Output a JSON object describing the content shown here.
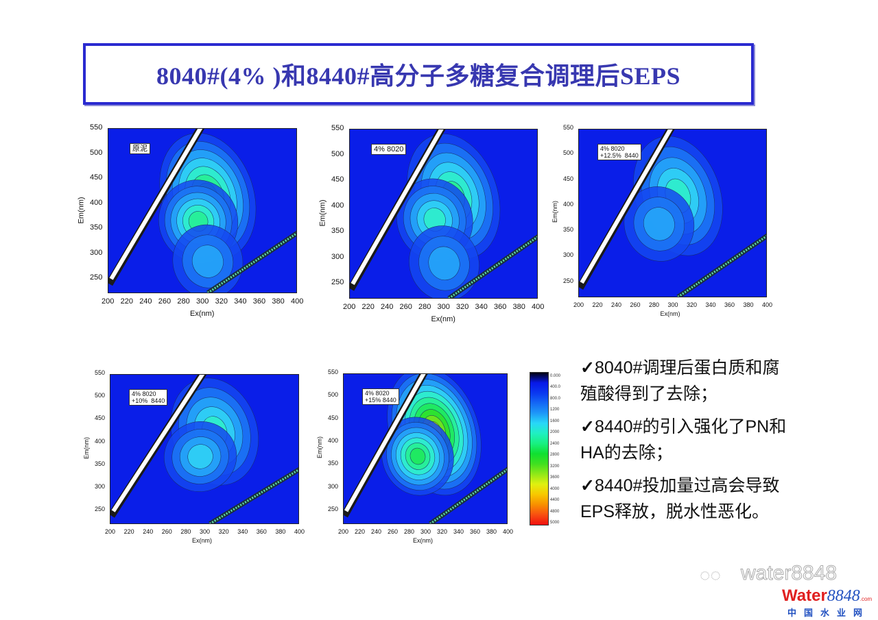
{
  "slide": {
    "title": "8040#(4% )和8440#高分子多糖复合调理后SEPS",
    "bullets": [
      {
        "check": "✓",
        "text": "8040#调理后蛋白质和腐殖酸得到了去除；"
      },
      {
        "check": "✓",
        "text": "8440#的引入强化了PN和HA的去除；"
      },
      {
        "check": "✓",
        "text": "8440#投加量过高会导致EPS释放，脱水性恶化。"
      }
    ],
    "watermark": "water8848",
    "logo": {
      "main": "Wat",
      "main2": "er",
      "num": "8848",
      "com": ".com",
      "sub": "中国水业网"
    }
  },
  "colorbar": {
    "ticks": [
      "0.000",
      "400.0",
      "800.0",
      "1200",
      "1600",
      "2000",
      "2400",
      "2800",
      "3200",
      "3600",
      "4000",
      "4400",
      "4800",
      "5000"
    ],
    "colors": [
      "#000010",
      "#0818e8",
      "#0a38f0",
      "#1468f5",
      "#1e98f8",
      "#28d8f8",
      "#20f0c0",
      "#18f080",
      "#10e030",
      "#40e020",
      "#90e818",
      "#e0f010",
      "#f8c800",
      "#f89000",
      "#f85010",
      "#f01010"
    ]
  },
  "chart_data": [
    {
      "type": "heatmap",
      "label": "原泥",
      "xlabel": "Ex(nm)",
      "ylabel": "Em(nm)",
      "xlim": [
        200,
        400
      ],
      "ylim": [
        220,
        550
      ],
      "xticks": [
        "200",
        "220",
        "240",
        "260",
        "280",
        "300",
        "320",
        "340",
        "360",
        "380",
        "400"
      ],
      "yticks": [
        "250",
        "300",
        "350",
        "400",
        "450",
        "500",
        "550"
      ],
      "peaks": [
        {
          "ex": 305,
          "em": 415,
          "level": 7
        },
        {
          "ex": 295,
          "em": 365,
          "level": 6
        },
        {
          "ex": 305,
          "em": 285,
          "level": 3
        }
      ]
    },
    {
      "type": "heatmap",
      "label": "4% 8020",
      "xlabel": "Ex(nm)",
      "ylabel": "Em(nm)",
      "xlim": [
        200,
        400
      ],
      "ylim": [
        220,
        550
      ],
      "xticks": [
        "200",
        "220",
        "240",
        "260",
        "280",
        "300",
        "320",
        "340",
        "360",
        "380",
        "400"
      ],
      "yticks": [
        "250",
        "300",
        "350",
        "400",
        "450",
        "500",
        "550"
      ],
      "peaks": [
        {
          "ex": 310,
          "em": 420,
          "level": 6
        },
        {
          "ex": 290,
          "em": 375,
          "level": 5
        },
        {
          "ex": 300,
          "em": 290,
          "level": 3
        }
      ]
    },
    {
      "type": "heatmap",
      "label": "4% 8020\n+12.5%  8440",
      "xlabel": "Ex(nm)",
      "ylabel": "Em(nm)",
      "xlim": [
        200,
        400
      ],
      "ylim": [
        220,
        550
      ],
      "xticks": [
        "200",
        "220",
        "240",
        "260",
        "280",
        "300",
        "320",
        "340",
        "360",
        "380",
        "400"
      ],
      "yticks": [
        "250",
        "300",
        "350",
        "400",
        "450",
        "500",
        "550"
      ],
      "peaks": [
        {
          "ex": 305,
          "em": 420,
          "level": 5
        },
        {
          "ex": 285,
          "em": 365,
          "level": 3
        }
      ]
    },
    {
      "type": "heatmap",
      "label": "4% 8020\n+10%  8440",
      "xlabel": "Ex(nm)",
      "ylabel": "Em(nm)",
      "xlim": [
        200,
        400
      ],
      "ylim": [
        220,
        550
      ],
      "xticks": [
        "200",
        "220",
        "240",
        "260",
        "280",
        "300",
        "320",
        "340",
        "360",
        "380",
        "400"
      ],
      "yticks": [
        "250",
        "300",
        "350",
        "400",
        "450",
        "500",
        "550"
      ],
      "peaks": [
        {
          "ex": 310,
          "em": 425,
          "level": 5
        },
        {
          "ex": 295,
          "em": 370,
          "level": 4
        }
      ]
    },
    {
      "type": "heatmap",
      "label": "4% 8020\n+15% 8440",
      "xlabel": "Ex(nm)",
      "ylabel": "Em(nm)",
      "xlim": [
        200,
        400
      ],
      "ylim": [
        220,
        550
      ],
      "xticks": [
        "200",
        "220",
        "240",
        "260",
        "280",
        "300",
        "320",
        "340",
        "360",
        "380",
        "400"
      ],
      "yticks": [
        "250",
        "300",
        "350",
        "400",
        "450",
        "500",
        "550"
      ],
      "peaks": [
        {
          "ex": 310,
          "em": 425,
          "level": 10
        },
        {
          "ex": 290,
          "em": 370,
          "level": 7
        }
      ]
    }
  ]
}
